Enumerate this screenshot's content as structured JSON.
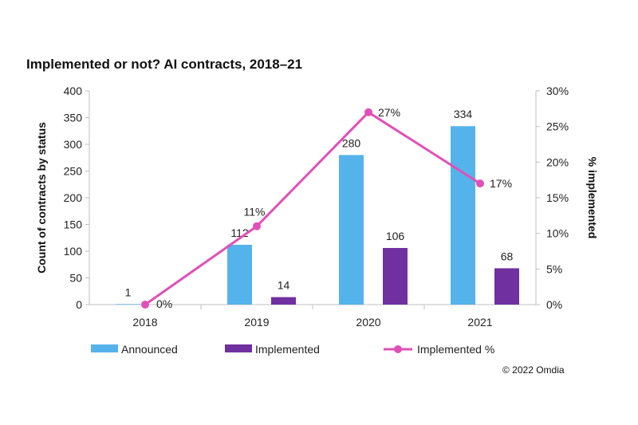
{
  "chart_data": {
    "type": "bar",
    "title": "Implemented or not? AI contracts, 2018–21",
    "categories": [
      "2018",
      "2019",
      "2020",
      "2021"
    ],
    "series": [
      {
        "name": "Announced",
        "type": "bar",
        "axis": "left",
        "color": "#55b3ec",
        "values": [
          1,
          112,
          280,
          334
        ]
      },
      {
        "name": "Implemented",
        "type": "bar",
        "axis": "left",
        "color": "#7030a0",
        "values": [
          0,
          14,
          106,
          68
        ]
      },
      {
        "name": "Implemented %",
        "type": "line",
        "axis": "right",
        "color": "#e050b8",
        "values": [
          0,
          11,
          27,
          17
        ]
      }
    ],
    "data_labels": {
      "Announced": [
        "1",
        "112",
        "280",
        "334"
      ],
      "Implemented": [
        "",
        "14",
        "106",
        "68"
      ],
      "Implemented %": [
        "0%",
        "11%",
        "27%",
        "17%"
      ]
    },
    "ylabel": "Count of contracts by status",
    "y2label": "% implemented",
    "ylim": [
      0,
      400
    ],
    "y2lim": [
      0,
      30
    ],
    "yticks": [
      "0",
      "50",
      "100",
      "150",
      "200",
      "250",
      "300",
      "350",
      "400"
    ],
    "y2ticks": [
      "0%",
      "5%",
      "10%",
      "15%",
      "20%",
      "25%",
      "30%"
    ],
    "grid": false,
    "legend_position": "bottom"
  },
  "credit": "© 2022 Omdia"
}
